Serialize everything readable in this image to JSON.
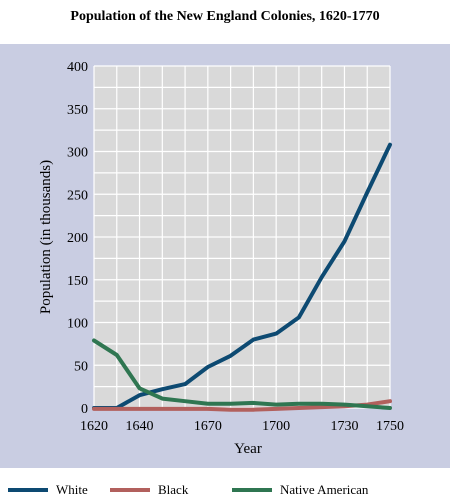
{
  "chart_data": {
    "type": "line",
    "title": "Population of the New England Colonies, 1620-1770",
    "xlabel": "Year",
    "ylabel": "Population (in thousands)",
    "xlim": [
      1620,
      1750
    ],
    "ylim": [
      0,
      400
    ],
    "x_ticks": [
      1620,
      1640,
      1670,
      1700,
      1730,
      1750
    ],
    "y_ticks": [
      0,
      50,
      100,
      150,
      200,
      250,
      300,
      350,
      400
    ],
    "grid": true,
    "legend_position": "bottom",
    "x": [
      1620,
      1630,
      1640,
      1650,
      1660,
      1670,
      1680,
      1690,
      1700,
      1710,
      1720,
      1730,
      1740,
      1750
    ],
    "series": [
      {
        "name": "White",
        "color": "#0d4a72",
        "values": [
          0,
          0,
          15,
          22,
          28,
          48,
          61,
          80,
          87,
          106,
          153,
          195,
          252,
          308
        ]
      },
      {
        "name": "Black",
        "color": "#b2605d",
        "values": [
          -1,
          -1,
          -1,
          -1,
          -1,
          -1,
          -2,
          -2,
          -1,
          0,
          1,
          2,
          4,
          8
        ]
      },
      {
        "name": "Native American",
        "color": "#2f7651",
        "values": [
          79,
          62,
          23,
          11,
          8,
          5,
          5,
          6,
          4,
          5,
          5,
          4,
          2,
          0
        ]
      }
    ]
  }
}
